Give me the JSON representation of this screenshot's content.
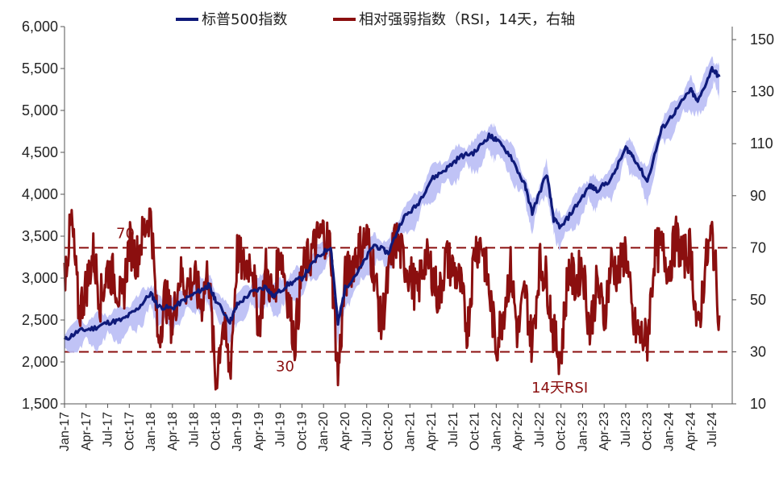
{
  "chart_data": {
    "type": "line",
    "legend": {
      "placement": "top",
      "entries": [
        {
          "label": "标普500指数",
          "color": "#0f1a7a"
        },
        {
          "label": "相对强弱指数（RSI，14天，右轴",
          "color": "#8b0f0f"
        }
      ]
    },
    "x_tick_labels": [
      "Jan-17",
      "Apr-17",
      "Jul-17",
      "Oct-17",
      "Jan-18",
      "Apr-18",
      "Jul-18",
      "Oct-18",
      "Jan-19",
      "Apr-19",
      "Jul-19",
      "Oct-19",
      "Jan-20",
      "Apr-20",
      "Jul-20",
      "Oct-20",
      "Jan-21",
      "Apr-21",
      "Jul-21",
      "Oct-21",
      "Jan-22",
      "Apr-22",
      "Jul-22",
      "Oct-22",
      "Jan-23",
      "Apr-23",
      "Jul-23",
      "Oct-23",
      "Jan-24",
      "Apr-24",
      "Jul-24"
    ],
    "y_left": {
      "min": 1500,
      "max": 6000,
      "step": 500,
      "tick_labels": [
        "1,500",
        "2,000",
        "2,500",
        "3,000",
        "3,500",
        "4,000",
        "4,500",
        "5,000",
        "5,500",
        "6,000"
      ]
    },
    "y_right": {
      "min": 10,
      "max": 155,
      "tick_labels": [
        "10",
        "30",
        "50",
        "70",
        "90",
        "110",
        "130",
        "150"
      ]
    },
    "reference_lines": [
      {
        "axis": "right",
        "value": 70,
        "label": "70",
        "style": "dashed",
        "color": "#8b0f0f"
      },
      {
        "axis": "right",
        "value": 30,
        "label": "30",
        "style": "dashed",
        "color": "#8b0f0f"
      }
    ],
    "annotations": [
      {
        "text": "14天RSI"
      }
    ],
    "series": [
      {
        "name": "标普500指数",
        "axis": "left",
        "color": "#0f1a7a",
        "band_color": "#b9bdf5",
        "x": [
          "2017-01",
          "2017-03",
          "2017-05",
          "2017-07",
          "2017-09",
          "2017-11",
          "2018-01",
          "2018-02",
          "2018-04",
          "2018-06",
          "2018-08",
          "2018-09",
          "2018-10",
          "2018-12",
          "2019-01",
          "2019-03",
          "2019-05",
          "2019-06",
          "2019-08",
          "2019-10",
          "2019-12",
          "2020-02",
          "2020-03",
          "2020-04",
          "2020-06",
          "2020-08",
          "2020-10",
          "2020-12",
          "2021-02",
          "2021-04",
          "2021-06",
          "2021-08",
          "2021-10",
          "2021-12",
          "2022-01",
          "2022-03",
          "2022-05",
          "2022-06",
          "2022-08",
          "2022-09",
          "2022-10",
          "2022-12",
          "2023-02",
          "2023-03",
          "2023-05",
          "2023-07",
          "2023-08",
          "2023-10",
          "2023-12",
          "2024-02",
          "2024-04",
          "2024-05",
          "2024-07",
          "2024-08"
        ],
        "values": [
          2260,
          2370,
          2400,
          2470,
          2500,
          2620,
          2820,
          2660,
          2640,
          2760,
          2860,
          2910,
          2740,
          2480,
          2680,
          2830,
          2900,
          2780,
          2920,
          3000,
          3230,
          3380,
          2450,
          2880,
          3100,
          3400,
          3300,
          3710,
          3870,
          4180,
          4300,
          4450,
          4500,
          4700,
          4650,
          4460,
          4100,
          3780,
          4250,
          3700,
          3600,
          3850,
          4100,
          4050,
          4180,
          4550,
          4460,
          4150,
          4780,
          5000,
          5250,
          5100,
          5500,
          5400
        ]
      },
      {
        "name": "相对强弱指数（RSI，14天，右轴",
        "axis": "right",
        "color": "#8b0f0f",
        "x": [
          "2017-01",
          "2017-02",
          "2017-03",
          "2017-04",
          "2017-05",
          "2017-06",
          "2017-07",
          "2017-08",
          "2017-09",
          "2017-10",
          "2017-11",
          "2017-12",
          "2018-01",
          "2018-02",
          "2018-03",
          "2018-04",
          "2018-05",
          "2018-06",
          "2018-07",
          "2018-08",
          "2018-09",
          "2018-10",
          "2018-11",
          "2018-12",
          "2019-01",
          "2019-02",
          "2019-03",
          "2019-04",
          "2019-05",
          "2019-06",
          "2019-07",
          "2019-08",
          "2019-09",
          "2019-10",
          "2019-11",
          "2019-12",
          "2020-01",
          "2020-02",
          "2020-03",
          "2020-04",
          "2020-05",
          "2020-06",
          "2020-07",
          "2020-08",
          "2020-09",
          "2020-10",
          "2020-11",
          "2020-12",
          "2021-01",
          "2021-02",
          "2021-03",
          "2021-04",
          "2021-05",
          "2021-06",
          "2021-07",
          "2021-08",
          "2021-09",
          "2021-10",
          "2021-11",
          "2021-12",
          "2022-01",
          "2022-02",
          "2022-03",
          "2022-04",
          "2022-05",
          "2022-06",
          "2022-07",
          "2022-08",
          "2022-09",
          "2022-10",
          "2022-11",
          "2022-12",
          "2023-01",
          "2023-02",
          "2023-03",
          "2023-04",
          "2023-05",
          "2023-06",
          "2023-07",
          "2023-08",
          "2023-09",
          "2023-10",
          "2023-11",
          "2023-12",
          "2024-01",
          "2024-02",
          "2024-03",
          "2024-04",
          "2024-05",
          "2024-06",
          "2024-07",
          "2024-08"
        ],
        "values": [
          60,
          80,
          45,
          55,
          68,
          50,
          62,
          58,
          48,
          72,
          66,
          76,
          85,
          33,
          52,
          40,
          60,
          55,
          58,
          48,
          62,
          18,
          42,
          22,
          68,
          62,
          66,
          40,
          62,
          50,
          70,
          52,
          34,
          60,
          66,
          72,
          76,
          70,
          20,
          58,
          64,
          70,
          74,
          62,
          40,
          58,
          74,
          66,
          60,
          52,
          66,
          62,
          50,
          66,
          62,
          56,
          38,
          70,
          72,
          54,
          32,
          46,
          62,
          36,
          54,
          32,
          64,
          58,
          36,
          28,
          62,
          56,
          64,
          38,
          56,
          44,
          64,
          60,
          70,
          40,
          36,
          34,
          68,
          70,
          62,
          74,
          66,
          70,
          36,
          62,
          76,
          44
        ]
      }
    ]
  }
}
